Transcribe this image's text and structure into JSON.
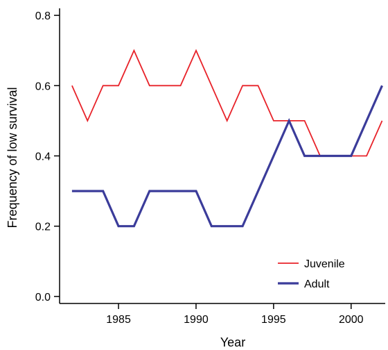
{
  "chart_data": {
    "type": "line",
    "title": "",
    "xlabel": "Year",
    "ylabel": "Frequency of low survival",
    "xlim": [
      1981.2,
      2002.2
    ],
    "ylim": [
      -0.02,
      0.82
    ],
    "xticks": [
      1985,
      1990,
      1995,
      2000
    ],
    "yticks": [
      0.0,
      0.2,
      0.4,
      0.6,
      0.8
    ],
    "ytick_labels": [
      "0.0",
      "0.2",
      "0.4",
      "0.6",
      "0.8"
    ],
    "grid": false,
    "legend_position": "bottom-right",
    "x": [
      1982,
      1983,
      1984,
      1985,
      1986,
      1987,
      1988,
      1989,
      1990,
      1991,
      1992,
      1993,
      1994,
      1995,
      1996,
      1997,
      1998,
      1999,
      2000,
      2001,
      2002
    ],
    "series": [
      {
        "name": "Juvenile",
        "color": "#e8232a",
        "line_style": "thin",
        "values": [
          0.6,
          0.5,
          0.6,
          0.6,
          0.7,
          0.6,
          0.6,
          0.6,
          0.7,
          0.6,
          0.5,
          0.6,
          0.6,
          0.5,
          0.5,
          0.5,
          0.4,
          0.4,
          0.4,
          0.4,
          0.5
        ]
      },
      {
        "name": "Adult",
        "color": "#3b3c9a",
        "line_style": "thick",
        "values": [
          0.3,
          0.3,
          0.3,
          0.2,
          0.2,
          0.3,
          0.3,
          0.3,
          0.3,
          0.2,
          0.2,
          0.2,
          0.3,
          0.4,
          0.5,
          0.4,
          0.4,
          0.4,
          0.4,
          0.5,
          0.6
        ]
      }
    ]
  }
}
